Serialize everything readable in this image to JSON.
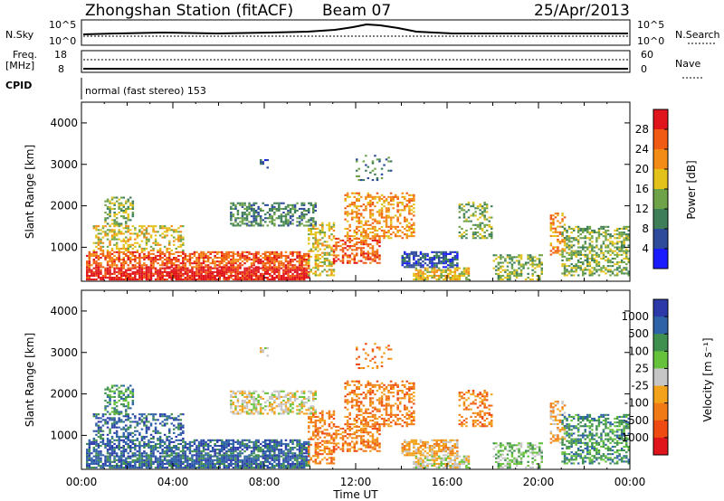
{
  "header": {
    "title": "Zhongshan Station (fitACF)",
    "beam": "Beam 07",
    "date": "25/Apr/2013"
  },
  "top_panels": {
    "nsky_label": "N.Sky",
    "nsky_ticks": [
      "10^5",
      "10^0"
    ],
    "nsearch_label": "N.Search",
    "nsearch_ticks": [
      "10^5",
      "10^0"
    ],
    "freq_label_1": "Freq.",
    "freq_label_2": "[MHz]",
    "freq_ticks": [
      "18",
      "8"
    ],
    "nave_label": "Nave",
    "nave_ticks": [
      "60",
      "0"
    ],
    "cpid_label": "CPID",
    "cpid_text": "normal (fast stereo) 153"
  },
  "colors": {
    "power": [
      "#1b1bff",
      "#2e4a9a",
      "#3e7f5a",
      "#6fa34a",
      "#e3c21b",
      "#f28c16",
      "#f05a12",
      "#e0141b"
    ],
    "velocity": [
      "#2b3aa8",
      "#2f63a7",
      "#3f8f4f",
      "#66c23a",
      "#c6c6c6",
      "#f2a31b",
      "#f07a16",
      "#ee4a12",
      "#e0141b"
    ]
  },
  "chart_data": [
    {
      "type": "heatmap",
      "name_text": "Power",
      "ylabel": "Slant Range [km]",
      "ylim": [
        180,
        4500
      ],
      "xlim": [
        0,
        24
      ],
      "x_ticks": [
        "00:00",
        "04:00",
        "08:00",
        "12:00",
        "16:00",
        "20:00",
        "00:00"
      ],
      "y_ticks": [
        "1000",
        "2000",
        "3000",
        "4000"
      ],
      "colorbar_label": "Power [dB]",
      "colorbar_ticks": [
        "4",
        "8",
        "12",
        "16",
        "20",
        "24",
        "28"
      ],
      "scale": [
        0,
        32
      ]
    },
    {
      "type": "heatmap",
      "name_text": "Velocity",
      "ylabel": "Slant Range [km]",
      "xlabel": "Time UT",
      "ylim": [
        180,
        4500
      ],
      "xlim": [
        0,
        24
      ],
      "x_ticks": [
        "00:00",
        "04:00",
        "08:00",
        "12:00",
        "16:00",
        "20:00",
        "00:00"
      ],
      "y_ticks": [
        "1000",
        "2000",
        "3000",
        "4000"
      ],
      "colorbar_label": "Velocity [m s⁻¹]",
      "colorbar_ticks": [
        "1000",
        "500",
        "100",
        "25",
        "-25",
        "-100",
        "-500",
        "-1000"
      ]
    }
  ]
}
